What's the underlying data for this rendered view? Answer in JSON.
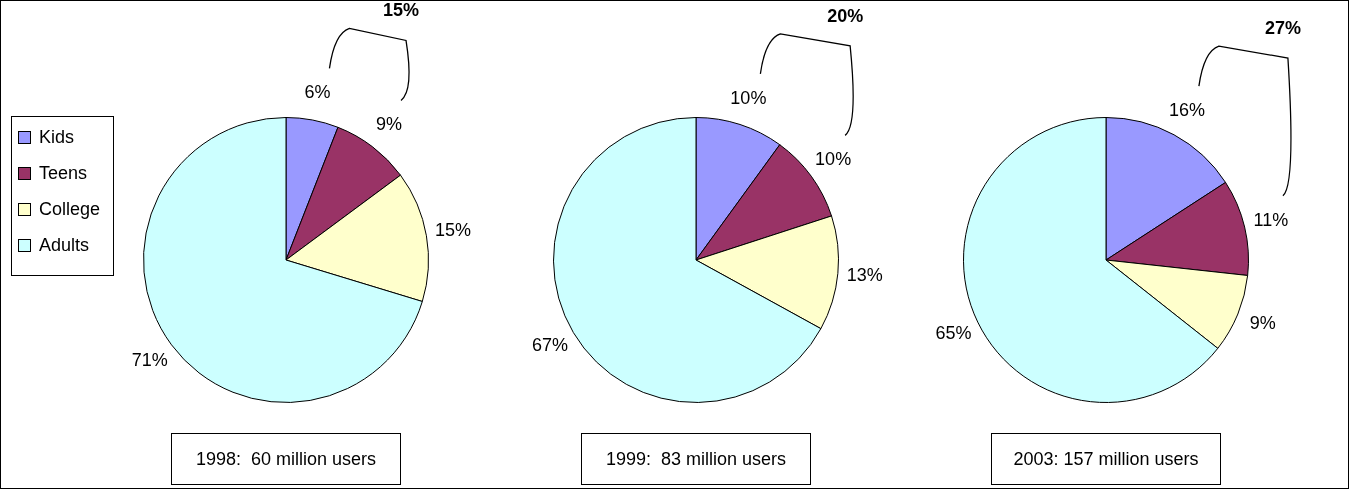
{
  "chart_data": [
    {
      "type": "pie",
      "title": "1998:  60 million users",
      "categories": [
        "Kids",
        "Teens",
        "College",
        "Adults"
      ],
      "values": [
        6,
        9,
        15,
        71
      ],
      "value_labels": [
        "6%",
        "9%",
        "15%",
        "71%"
      ],
      "colors": [
        "#9999ff",
        "#993366",
        "#ffffcc",
        "#ccffff"
      ],
      "legend": "left",
      "annotations": [
        "15%"
      ]
    },
    {
      "type": "pie",
      "title": "1999:  83 million users",
      "categories": [
        null,
        null,
        null,
        null
      ],
      "values": [
        10,
        10,
        13,
        67
      ],
      "value_labels": [
        "10%",
        "10%",
        "13%",
        "67%"
      ],
      "colors": [
        "#9999ff",
        "#993366",
        "#ffffcc",
        "#ccffff"
      ],
      "annotations": [
        "20%"
      ]
    },
    {
      "type": "pie",
      "title": "2003: 157 million users",
      "categories": [
        null,
        null,
        null,
        null
      ],
      "values": [
        16,
        11,
        9,
        65
      ],
      "value_labels": [
        "16%",
        "11%",
        "9%",
        "65%"
      ],
      "colors": [
        "#9999ff",
        "#993366",
        "#ffffcc",
        "#ccffff"
      ],
      "annotations": [
        "27%"
      ]
    }
  ]
}
